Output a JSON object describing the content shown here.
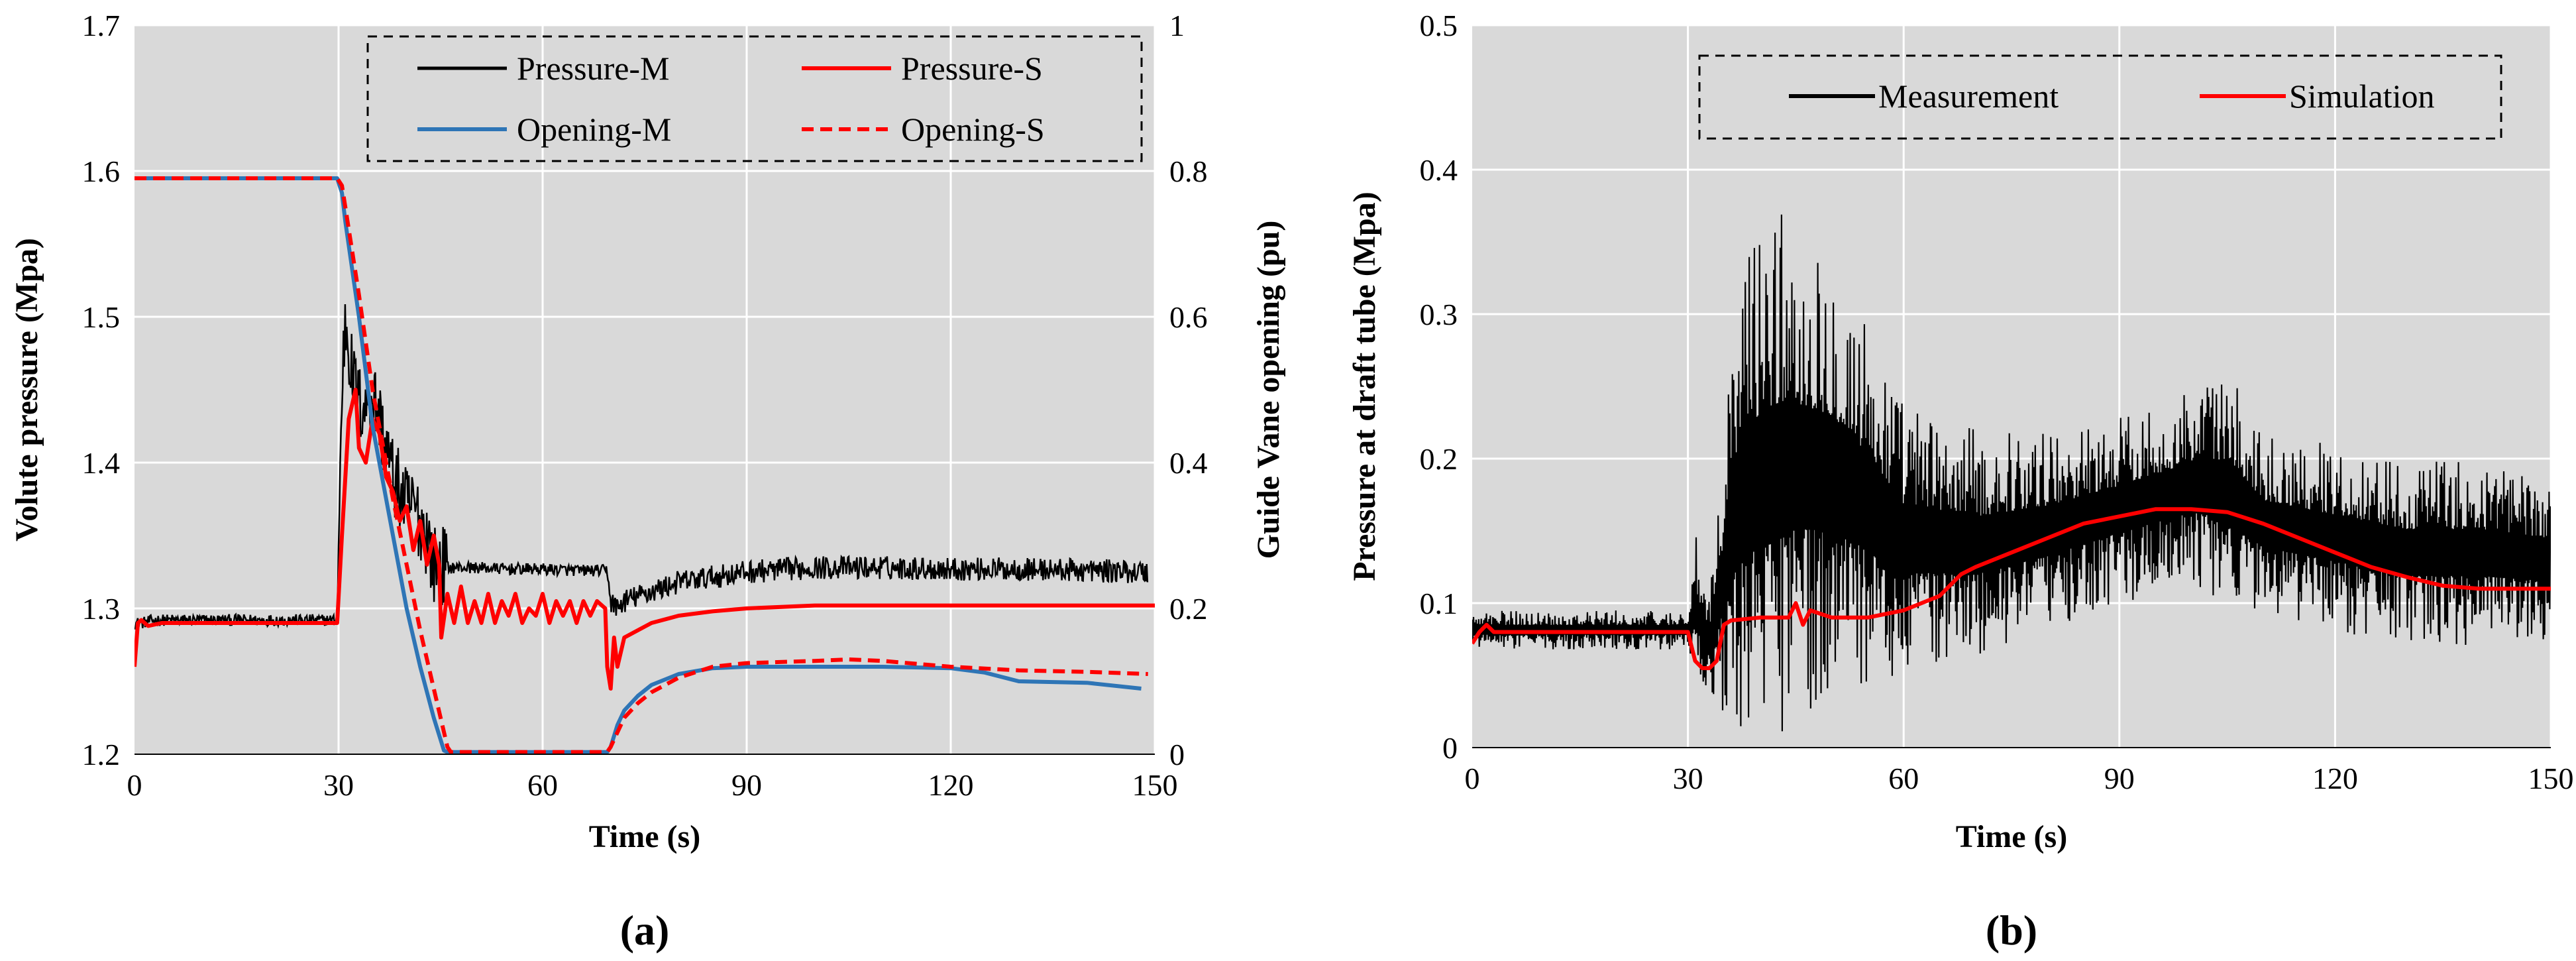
{
  "chart_data": [
    {
      "type": "line",
      "panel_label": "(a)",
      "xlabel": "Time (s)",
      "ylabel": "Volute pressure (Mpa)",
      "y2label": "Guide Vane opening (pu)",
      "xlim": [
        0,
        150
      ],
      "ylim": [
        1.2,
        1.7
      ],
      "y2lim": [
        0,
        1
      ],
      "xticks": [
        "0",
        "30",
        "60",
        "90",
        "120",
        "150"
      ],
      "yticks": [
        "1.2",
        "1.3",
        "1.4",
        "1.5",
        "1.6",
        "1.7"
      ],
      "y2ticks": [
        "0",
        "0.2",
        "0.4",
        "0.6",
        "0.8",
        "1"
      ],
      "grid": true,
      "legend_position": "top-right",
      "series": [
        {
          "name": "Pressure-M",
          "axis": "left",
          "color": "#000000",
          "style": "noisy",
          "x": [
            0,
            1,
            3,
            10,
            20,
            29.8,
            30.5,
            31,
            31.5,
            32,
            33,
            34,
            35,
            36,
            37,
            38,
            39,
            40,
            41,
            42,
            43,
            44,
            45,
            46,
            50,
            55,
            60,
            65,
            69.5,
            70,
            71,
            72,
            75,
            80,
            90,
            100,
            110,
            120,
            130,
            140,
            149
          ],
          "y": [
            1.29,
            1.29,
            1.292,
            1.292,
            1.292,
            1.292,
            1.45,
            1.5,
            1.48,
            1.46,
            1.44,
            1.44,
            1.45,
            1.43,
            1.41,
            1.39,
            1.38,
            1.37,
            1.37,
            1.36,
            1.35,
            1.33,
            1.33,
            1.328,
            1.328,
            1.327,
            1.327,
            1.326,
            1.326,
            1.305,
            1.3,
            1.305,
            1.31,
            1.318,
            1.325,
            1.328,
            1.328,
            1.327,
            1.327,
            1.326,
            1.325
          ]
        },
        {
          "name": "Pressure-S",
          "axis": "left",
          "color": "#ff0000",
          "style": "solid",
          "x": [
            0,
            0.5,
            1,
            2,
            4,
            10,
            20,
            29.8,
            30.5,
            31.5,
            32.5,
            33,
            34,
            35,
            36,
            37,
            38,
            39,
            40,
            41,
            42,
            43,
            44,
            44.8,
            45.1,
            46,
            47,
            48,
            49,
            50,
            51,
            52,
            53,
            54,
            55,
            56,
            57,
            58,
            59,
            60,
            61,
            62,
            63,
            64,
            65,
            66,
            67,
            68,
            69.2,
            69.5,
            70,
            70.5,
            71,
            72,
            74,
            76,
            80,
            85,
            90,
            100,
            110,
            120,
            130,
            140,
            150
          ],
          "y": [
            1.26,
            1.29,
            1.292,
            1.288,
            1.29,
            1.29,
            1.29,
            1.29,
            1.35,
            1.43,
            1.45,
            1.41,
            1.4,
            1.43,
            1.42,
            1.39,
            1.38,
            1.36,
            1.37,
            1.34,
            1.36,
            1.33,
            1.35,
            1.33,
            1.28,
            1.31,
            1.29,
            1.315,
            1.29,
            1.305,
            1.29,
            1.31,
            1.29,
            1.305,
            1.295,
            1.31,
            1.29,
            1.3,
            1.295,
            1.31,
            1.29,
            1.305,
            1.295,
            1.305,
            1.29,
            1.305,
            1.295,
            1.305,
            1.3,
            1.26,
            1.245,
            1.28,
            1.26,
            1.28,
            1.285,
            1.29,
            1.295,
            1.298,
            1.3,
            1.302,
            1.302,
            1.302,
            1.302,
            1.302,
            1.302
          ]
        },
        {
          "name": "Opening-M",
          "axis": "right",
          "color": "#2e75b6",
          "style": "solid",
          "x": [
            0,
            29.8,
            30.5,
            31,
            33,
            35,
            38,
            40,
            42,
            44,
            45.5,
            46,
            69.5,
            70,
            71,
            72,
            74,
            76,
            80,
            85,
            90,
            100,
            110,
            120,
            125,
            130,
            140,
            148
          ],
          "y": [
            0.79,
            0.79,
            0.77,
            0.73,
            0.6,
            0.45,
            0.3,
            0.2,
            0.12,
            0.05,
            0.005,
            0.003,
            0.003,
            0.01,
            0.04,
            0.06,
            0.08,
            0.095,
            0.11,
            0.118,
            0.12,
            0.12,
            0.12,
            0.118,
            0.112,
            0.1,
            0.098,
            0.09
          ]
        },
        {
          "name": "Opening-S",
          "axis": "right",
          "color": "#ff0000",
          "style": "dashed",
          "x": [
            0,
            29.8,
            30.5,
            31,
            33,
            35,
            38,
            40,
            42,
            44,
            46,
            46.5,
            69.5,
            70,
            71,
            72,
            74,
            76,
            80,
            85,
            90,
            100,
            105,
            110,
            120,
            130,
            140,
            149
          ],
          "y": [
            0.79,
            0.79,
            0.78,
            0.75,
            0.63,
            0.5,
            0.35,
            0.26,
            0.17,
            0.09,
            0.01,
            0.003,
            0.003,
            0.01,
            0.03,
            0.05,
            0.07,
            0.085,
            0.105,
            0.12,
            0.125,
            0.128,
            0.13,
            0.128,
            0.12,
            0.115,
            0.113,
            0.11
          ]
        }
      ]
    },
    {
      "type": "line",
      "panel_label": "(b)",
      "xlabel": "Time (s)",
      "ylabel": "Pressure at draft tube (Mpa)",
      "xlim": [
        0,
        150
      ],
      "ylim": [
        0,
        0.5
      ],
      "xticks": [
        "0",
        "30",
        "60",
        "90",
        "120",
        "150"
      ],
      "yticks": [
        "0",
        "0.1",
        "0.2",
        "0.3",
        "0.4",
        "0.5"
      ],
      "grid": true,
      "legend_position": "top-right",
      "series": [
        {
          "name": "Measurement",
          "color": "#000000",
          "style": "envelope",
          "x": [
            0,
            30,
            31,
            33,
            35,
            37,
            40,
            42,
            45,
            50,
            55,
            60,
            70,
            80,
            90,
            100,
            105,
            110,
            120,
            130,
            140,
            150
          ],
          "upper": [
            0.095,
            0.095,
            0.15,
            0.1,
            0.22,
            0.34,
            0.37,
            0.38,
            0.37,
            0.35,
            0.3,
            0.24,
            0.22,
            0.22,
            0.23,
            0.25,
            0.26,
            0.22,
            0.21,
            0.2,
            0.2,
            0.19
          ],
          "lower": [
            0.068,
            0.068,
            0.045,
            0.04,
            0.02,
            0.0,
            0.0,
            0.0,
            0.02,
            0.03,
            0.04,
            0.05,
            0.06,
            0.08,
            0.1,
            0.11,
            0.1,
            0.09,
            0.08,
            0.07,
            0.07,
            0.07
          ]
        },
        {
          "name": "Simulation",
          "color": "#ff0000",
          "style": "solid",
          "x": [
            0,
            1,
            2,
            3,
            5,
            10,
            20,
            30,
            31,
            32,
            33,
            34,
            35,
            36,
            40,
            44,
            45,
            46,
            47,
            50,
            55,
            60,
            65,
            68,
            70,
            75,
            80,
            85,
            90,
            95,
            100,
            105,
            110,
            115,
            120,
            125,
            130,
            135,
            140,
            145,
            150
          ],
          "y": [
            0.072,
            0.08,
            0.085,
            0.08,
            0.08,
            0.08,
            0.08,
            0.08,
            0.06,
            0.055,
            0.055,
            0.06,
            0.085,
            0.088,
            0.09,
            0.09,
            0.1,
            0.085,
            0.095,
            0.09,
            0.09,
            0.095,
            0.105,
            0.12,
            0.125,
            0.135,
            0.145,
            0.155,
            0.16,
            0.165,
            0.165,
            0.163,
            0.155,
            0.145,
            0.135,
            0.125,
            0.118,
            0.112,
            0.11,
            0.11,
            0.11
          ]
        }
      ]
    }
  ]
}
